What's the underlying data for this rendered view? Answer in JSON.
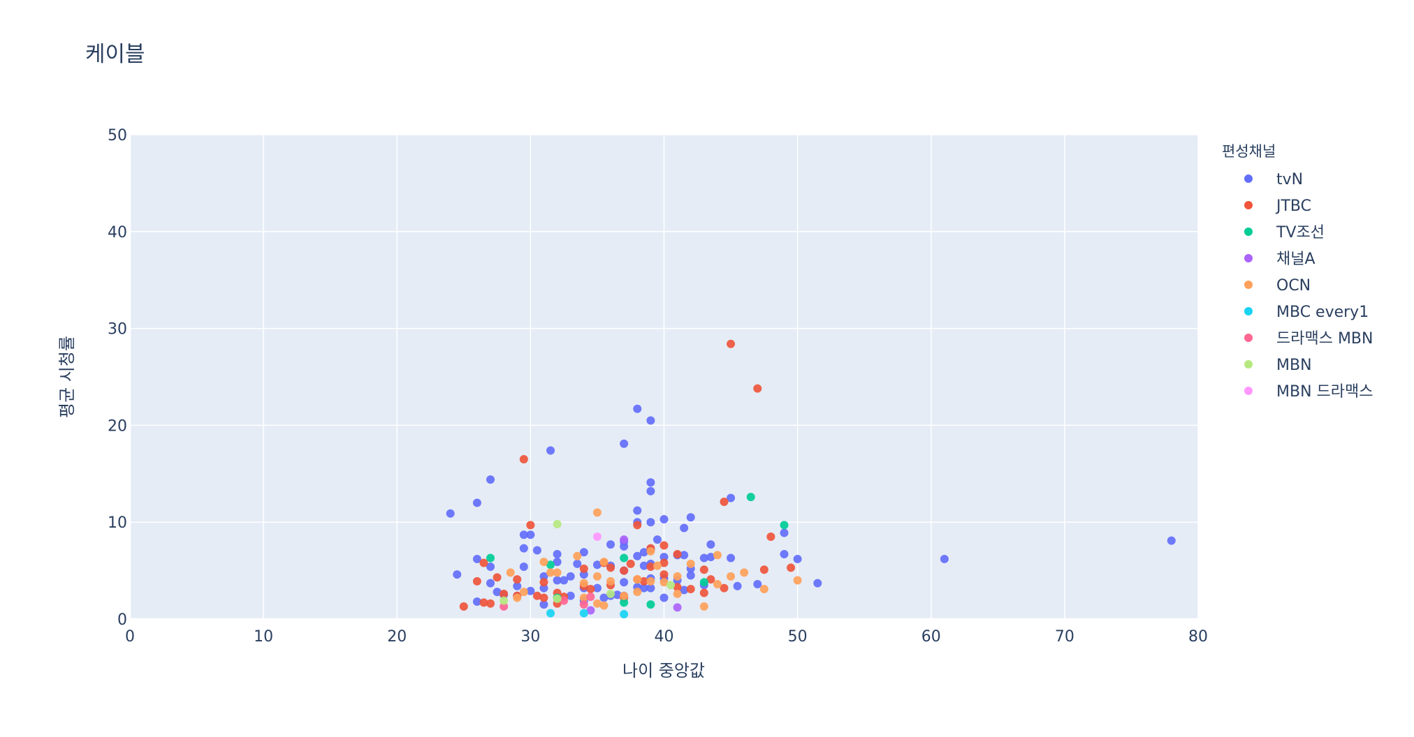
{
  "chart_data": {
    "type": "scatter",
    "title": "케이블",
    "xlabel": "나이 중앙값",
    "ylabel": "평균 시청률",
    "xlim": [
      0,
      80
    ],
    "ylim": [
      0,
      50
    ],
    "x_ticks": [
      0,
      10,
      20,
      30,
      40,
      50,
      60,
      70,
      80
    ],
    "y_ticks": [
      0,
      10,
      20,
      30,
      40,
      50
    ],
    "grid": true,
    "legend": {
      "title": "편성채널",
      "position": "right"
    },
    "plot_background": "#e5ecf6",
    "series": [
      {
        "name": "tvN",
        "color": "#636efa",
        "points": [
          [
            24,
            10.9
          ],
          [
            24.5,
            4.6
          ],
          [
            26,
            12.0
          ],
          [
            26,
            6.2
          ],
          [
            26,
            1.8
          ],
          [
            27,
            14.4
          ],
          [
            27,
            5.4
          ],
          [
            27,
            3.7
          ],
          [
            27.5,
            2.8
          ],
          [
            28,
            2.5
          ],
          [
            29,
            3.4
          ],
          [
            29,
            2.4
          ],
          [
            29.5,
            8.7
          ],
          [
            29.5,
            7.3
          ],
          [
            29.5,
            5.4
          ],
          [
            30,
            8.7
          ],
          [
            30,
            2.9
          ],
          [
            30.5,
            7.1
          ],
          [
            31,
            4.4
          ],
          [
            31,
            3.2
          ],
          [
            31,
            1.5
          ],
          [
            31.5,
            17.4
          ],
          [
            32,
            6.7
          ],
          [
            32,
            5.9
          ],
          [
            32,
            4.0
          ],
          [
            32.5,
            4.0
          ],
          [
            33,
            4.4
          ],
          [
            33,
            2.4
          ],
          [
            33.5,
            5.7
          ],
          [
            34,
            6.9
          ],
          [
            34,
            4.6
          ],
          [
            34,
            3.2
          ],
          [
            34,
            1.9
          ],
          [
            35,
            5.6
          ],
          [
            35,
            3.2
          ],
          [
            35.5,
            2.2
          ],
          [
            36,
            7.7
          ],
          [
            36,
            5.5
          ],
          [
            36,
            2.4
          ],
          [
            36.5,
            2.5
          ],
          [
            37,
            18.1
          ],
          [
            37,
            8.0
          ],
          [
            37,
            7.5
          ],
          [
            37,
            5.0
          ],
          [
            37,
            3.8
          ],
          [
            37,
            2.4
          ],
          [
            38,
            21.7
          ],
          [
            38,
            11.2
          ],
          [
            38,
            10.0
          ],
          [
            38,
            6.5
          ],
          [
            38,
            3.3
          ],
          [
            38.5,
            6.9
          ],
          [
            38.5,
            5.5
          ],
          [
            38.5,
            3.2
          ],
          [
            39,
            20.5
          ],
          [
            39,
            14.1
          ],
          [
            39,
            13.2
          ],
          [
            39,
            10.0
          ],
          [
            39,
            7.2
          ],
          [
            39,
            5.7
          ],
          [
            39,
            4.2
          ],
          [
            39,
            3.2
          ],
          [
            39.5,
            8.2
          ],
          [
            40,
            10.3
          ],
          [
            40,
            6.4
          ],
          [
            40,
            4.2
          ],
          [
            40,
            2.2
          ],
          [
            41,
            6.6
          ],
          [
            41,
            4.0
          ],
          [
            41.5,
            9.4
          ],
          [
            41.5,
            6.6
          ],
          [
            41.5,
            3.0
          ],
          [
            42,
            10.5
          ],
          [
            42,
            5.2
          ],
          [
            42,
            4.5
          ],
          [
            43,
            6.3
          ],
          [
            43,
            3.5
          ],
          [
            43.5,
            7.7
          ],
          [
            43.5,
            6.4
          ],
          [
            45,
            12.5
          ],
          [
            45,
            6.3
          ],
          [
            45.5,
            3.4
          ],
          [
            47,
            3.6
          ],
          [
            49,
            8.9
          ],
          [
            49,
            6.7
          ],
          [
            50,
            6.2
          ],
          [
            51.5,
            3.7
          ],
          [
            61,
            6.2
          ],
          [
            78,
            8.1
          ]
        ]
      },
      {
        "name": "JTBC",
        "color": "#ef553b",
        "points": [
          [
            25,
            1.3
          ],
          [
            26,
            3.9
          ],
          [
            26.5,
            5.8
          ],
          [
            26.5,
            1.7
          ],
          [
            27,
            1.6
          ],
          [
            27.5,
            4.3
          ],
          [
            28,
            2.6
          ],
          [
            29,
            4.1
          ],
          [
            29,
            2.4
          ],
          [
            29.5,
            16.5
          ],
          [
            30,
            9.7
          ],
          [
            30.5,
            2.4
          ],
          [
            31,
            3.8
          ],
          [
            31,
            2.2
          ],
          [
            32,
            2.7
          ],
          [
            32,
            1.6
          ],
          [
            32.5,
            2.3
          ],
          [
            34,
            5.2
          ],
          [
            34,
            3.4
          ],
          [
            34.5,
            3.1
          ],
          [
            35.5,
            5.8
          ],
          [
            36,
            5.3
          ],
          [
            36,
            3.5
          ],
          [
            37,
            5.0
          ],
          [
            37,
            2.2
          ],
          [
            37.5,
            5.7
          ],
          [
            38,
            9.7
          ],
          [
            38,
            4.1
          ],
          [
            38.5,
            3.9
          ],
          [
            39,
            7.3
          ],
          [
            39,
            5.4
          ],
          [
            40,
            7.6
          ],
          [
            40,
            5.8
          ],
          [
            40,
            4.6
          ],
          [
            41,
            6.7
          ],
          [
            41,
            3.3
          ],
          [
            42,
            3.1
          ],
          [
            43,
            5.1
          ],
          [
            43,
            2.7
          ],
          [
            43.5,
            4.1
          ],
          [
            44.5,
            12.1
          ],
          [
            44.5,
            3.2
          ],
          [
            45,
            28.4
          ],
          [
            47,
            23.8
          ],
          [
            47.5,
            5.1
          ],
          [
            48,
            8.5
          ],
          [
            49.5,
            5.3
          ]
        ]
      },
      {
        "name": "TV조선",
        "color": "#00cc96",
        "points": [
          [
            27,
            6.3
          ],
          [
            31.5,
            5.6
          ],
          [
            32,
            2.2
          ],
          [
            37,
            6.3
          ],
          [
            37,
            1.7
          ],
          [
            39,
            1.5
          ],
          [
            43,
            3.8
          ],
          [
            46.5,
            12.6
          ],
          [
            49,
            9.7
          ]
        ]
      },
      {
        "name": "채널A",
        "color": "#ab63fa",
        "points": [
          [
            34.5,
            0.9
          ],
          [
            37,
            8.2
          ],
          [
            41,
            1.2
          ]
        ]
      },
      {
        "name": "OCN",
        "color": "#ffa15a",
        "points": [
          [
            28.5,
            4.8
          ],
          [
            29,
            2.2
          ],
          [
            29.5,
            2.8
          ],
          [
            31,
            5.9
          ],
          [
            31.5,
            4.8
          ],
          [
            32,
            4.8
          ],
          [
            33.5,
            6.5
          ],
          [
            34,
            3.7
          ],
          [
            34,
            2.2
          ],
          [
            35,
            11.0
          ],
          [
            35,
            4.4
          ],
          [
            35,
            1.6
          ],
          [
            35.5,
            5.9
          ],
          [
            35.5,
            1.4
          ],
          [
            36,
            3.9
          ],
          [
            37,
            2.4
          ],
          [
            38,
            4.1
          ],
          [
            38,
            2.8
          ],
          [
            39,
            7.0
          ],
          [
            39,
            3.9
          ],
          [
            39.5,
            5.5
          ],
          [
            40,
            3.8
          ],
          [
            41,
            4.4
          ],
          [
            41,
            2.6
          ],
          [
            42,
            5.7
          ],
          [
            43,
            1.3
          ],
          [
            44,
            6.6
          ],
          [
            44,
            3.6
          ],
          [
            45,
            4.4
          ],
          [
            46,
            4.8
          ],
          [
            47.5,
            3.1
          ],
          [
            50,
            4.0
          ]
        ]
      },
      {
        "name": "MBC every1",
        "color": "#19d3f3",
        "points": [
          [
            31.5,
            0.6
          ],
          [
            34,
            0.6
          ],
          [
            37,
            0.5
          ]
        ]
      },
      {
        "name": "드라맥스 MBN",
        "color": "#ff6692",
        "points": [
          [
            28,
            1.3
          ],
          [
            32.5,
            1.9
          ],
          [
            34,
            1.5
          ],
          [
            34.5,
            2.3
          ]
        ]
      },
      {
        "name": "MBN",
        "color": "#b6e880",
        "points": [
          [
            28,
            1.9
          ],
          [
            32,
            9.8
          ],
          [
            32,
            2.1
          ],
          [
            36,
            2.6
          ],
          [
            40.5,
            3.5
          ]
        ]
      },
      {
        "name": "MBN 드라맥스",
        "color": "#ff97ff",
        "points": [
          [
            35,
            8.5
          ]
        ]
      }
    ]
  }
}
